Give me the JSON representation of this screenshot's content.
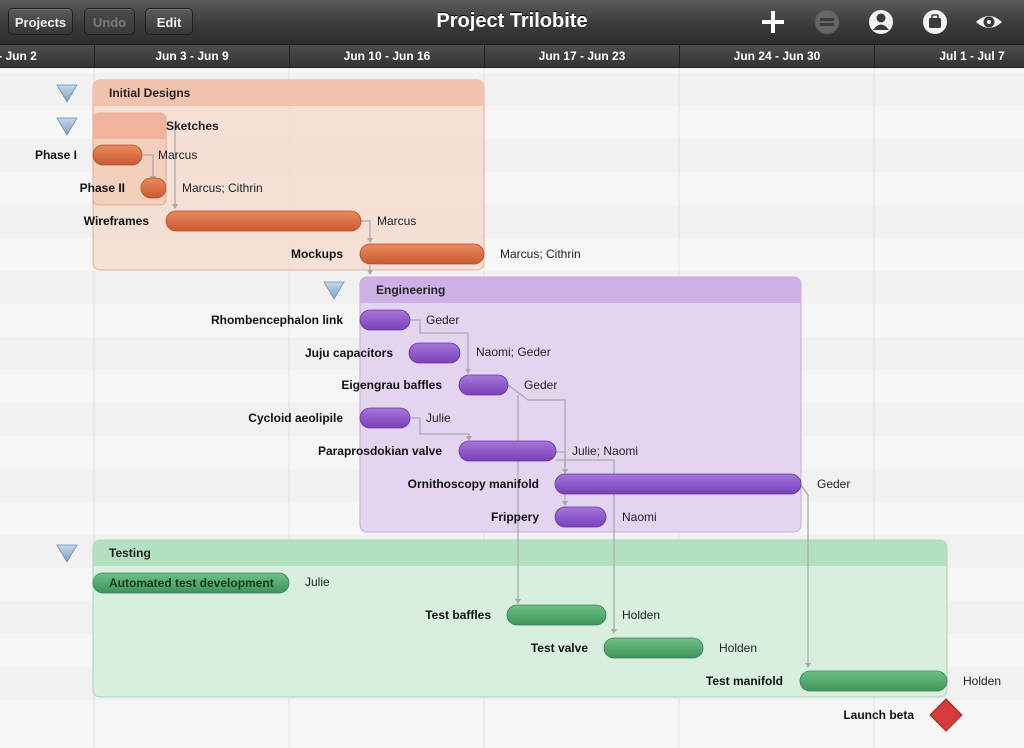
{
  "toolbar": {
    "projects_label": "Projects",
    "undo_label": "Undo",
    "edit_label": "Edit",
    "title": "Project Trilobite",
    "icons": [
      "add-icon",
      "remove-icon",
      "resources-icon",
      "inspector-icon",
      "view-icon"
    ]
  },
  "timescale": {
    "weeks": [
      "- Jun 2",
      "Jun 3 - Jun 9",
      "Jun 10 - Jun 16",
      "Jun 17 - Jun 23",
      "Jun 24 - Jun 30",
      "Jul 1 - Jul 7"
    ]
  },
  "colors": {
    "design": "#d9673e",
    "engineering": "#8a4fc4",
    "testing": "#4fa56a",
    "milestone": "#d63a3a"
  },
  "groups": [
    {
      "id": "design",
      "name": "Initial Designs"
    },
    {
      "id": "sketches",
      "name": "Sketches"
    },
    {
      "id": "engineering",
      "name": "Engineering"
    },
    {
      "id": "testing",
      "name": "Testing"
    }
  ],
  "tasks": [
    {
      "id": "phase1",
      "name": "Phase I",
      "resource": "Marcus",
      "group": "design"
    },
    {
      "id": "phase2",
      "name": "Phase II",
      "resource": "Marcus; Cithrin",
      "group": "design"
    },
    {
      "id": "wireframes",
      "name": "Wireframes",
      "resource": "Marcus",
      "group": "design"
    },
    {
      "id": "mockups",
      "name": "Mockups",
      "resource": "Marcus; Cithrin",
      "group": "design"
    },
    {
      "id": "rhomb",
      "name": "Rhombencephalon link",
      "resource": "Geder",
      "group": "engineering"
    },
    {
      "id": "juju",
      "name": "Juju capacitors",
      "resource": "Naomi; Geder",
      "group": "engineering"
    },
    {
      "id": "eigen",
      "name": "Eigengrau baffles",
      "resource": "Geder",
      "group": "engineering"
    },
    {
      "id": "cycloid",
      "name": "Cycloid aeolipile",
      "resource": "Julie",
      "group": "engineering"
    },
    {
      "id": "parap",
      "name": "Paraprosdokian valve",
      "resource": "Julie; Naomi",
      "group": "engineering"
    },
    {
      "id": "ornith",
      "name": "Ornithoscopy manifold",
      "resource": "Geder",
      "group": "engineering"
    },
    {
      "id": "frippery",
      "name": "Frippery",
      "resource": "Naomi",
      "group": "engineering"
    },
    {
      "id": "autotest",
      "name": "Automated test development",
      "resource": "Julie",
      "group": "testing"
    },
    {
      "id": "tbaffles",
      "name": "Test baffles",
      "resource": "Holden",
      "group": "testing"
    },
    {
      "id": "tvalve",
      "name": "Test valve",
      "resource": "Holden",
      "group": "testing"
    },
    {
      "id": "tmanifold",
      "name": "Test manifold",
      "resource": "Holden",
      "group": "testing"
    }
  ],
  "milestones": [
    {
      "id": "launch",
      "name": "Launch beta"
    }
  ]
}
